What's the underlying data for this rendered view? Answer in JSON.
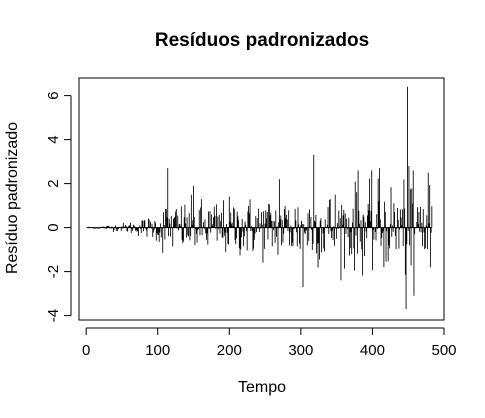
{
  "chart_data": {
    "type": "line",
    "style": "vertical-lines",
    "title": "Resíduos padronizados",
    "xlabel": "Tempo",
    "ylabel": "Resíduo padronizado",
    "xlim": [
      -10,
      500
    ],
    "ylim": [
      -4.2,
      6.8
    ],
    "xticks": [
      0,
      100,
      200,
      300,
      400,
      500
    ],
    "yticks": [
      -4,
      -2,
      0,
      2,
      4,
      6
    ],
    "xtick_labels": [
      "0",
      "100",
      "200",
      "300",
      "400",
      "500"
    ],
    "ytick_labels": [
      "-4",
      "-2",
      "0",
      "2",
      "4",
      "6"
    ],
    "x_start": 1,
    "x_end": 483,
    "grid": false,
    "line_color": "#000000",
    "notable_values": [
      {
        "x": 114,
        "y": 2.7
      },
      {
        "x": 150,
        "y": 1.9
      },
      {
        "x": 270,
        "y": 2.2
      },
      {
        "x": 303,
        "y": -2.7
      },
      {
        "x": 318,
        "y": 3.3
      },
      {
        "x": 380,
        "y": 2.6
      },
      {
        "x": 410,
        "y": 2.7
      },
      {
        "x": 447,
        "y": -3.7
      },
      {
        "x": 449,
        "y": 6.4
      },
      {
        "x": 451,
        "y": 2.8
      },
      {
        "x": 458,
        "y": -3.1
      },
      {
        "x": 478,
        "y": 2.5
      },
      {
        "x": 481,
        "y": -1.8
      }
    ]
  }
}
